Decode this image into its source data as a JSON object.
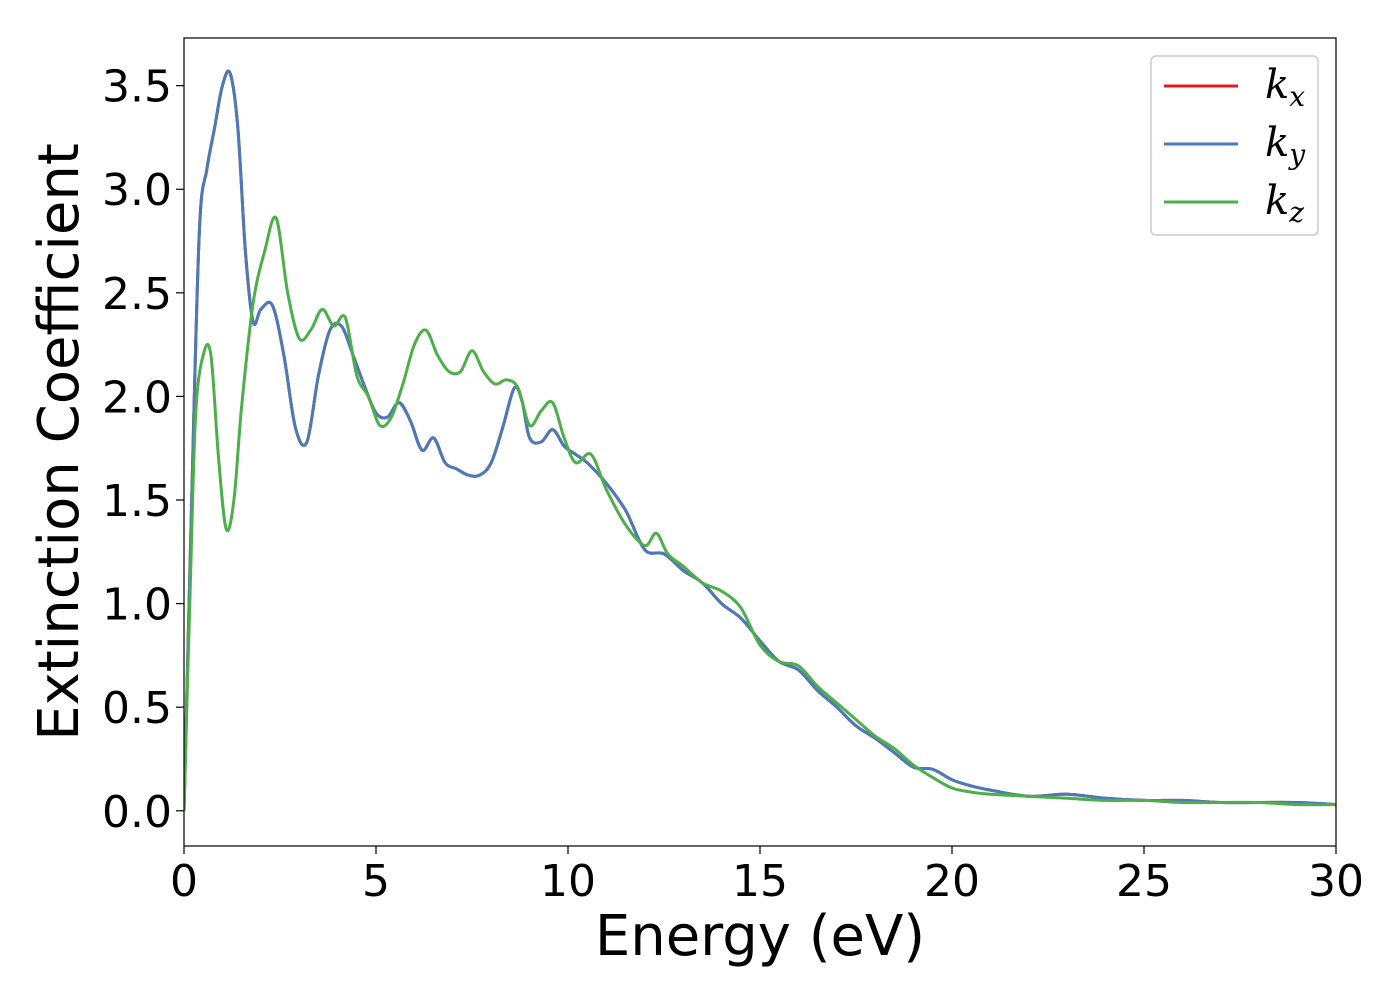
{
  "chart_data": {
    "type": "line",
    "xlabel": "Energy (eV)",
    "ylabel": "Extinction Coefficient",
    "xlim": [
      0,
      30
    ],
    "ylim": [
      -0.17,
      3.73
    ],
    "xticks": [
      0,
      5,
      10,
      15,
      20,
      25,
      30
    ],
    "xtick_labels": [
      "0",
      "5",
      "10",
      "15",
      "20",
      "25",
      "30"
    ],
    "yticks": [
      0.0,
      0.5,
      1.0,
      1.5,
      2.0,
      2.5,
      3.0,
      3.5
    ],
    "ytick_labels": [
      "0.0",
      "0.5",
      "1.0",
      "1.5",
      "2.0",
      "2.5",
      "3.0",
      "3.5"
    ],
    "grid": false,
    "legend_position": "top-right",
    "series": [
      {
        "name": "kx",
        "label_main": "k",
        "label_sub": "x",
        "color": "#e41a1c",
        "x": [
          0,
          0.2,
          0.4,
          0.6,
          0.8,
          1.0,
          1.2,
          1.4,
          1.6,
          1.8,
          2.0,
          2.3,
          2.6,
          2.9,
          3.2,
          3.5,
          3.8,
          4.1,
          4.4,
          4.7,
          5.0,
          5.3,
          5.6,
          5.9,
          6.2,
          6.5,
          6.8,
          7.1,
          7.4,
          7.7,
          8.0,
          8.3,
          8.6,
          8.8,
          9.0,
          9.3,
          9.6,
          9.9,
          10.2,
          10.5,
          11,
          11.5,
          12,
          12.5,
          13,
          13.5,
          14,
          14.5,
          15,
          15.5,
          16,
          16.5,
          17,
          17.5,
          18,
          18.5,
          19,
          19.5,
          20,
          20.5,
          21,
          22,
          23,
          24,
          25,
          26,
          27,
          28,
          29,
          30
        ],
        "y": [
          0.0,
          1.5,
          2.8,
          3.1,
          3.3,
          3.5,
          3.56,
          3.3,
          2.7,
          2.36,
          2.42,
          2.44,
          2.2,
          1.85,
          1.78,
          2.1,
          2.32,
          2.34,
          2.2,
          2.05,
          1.92,
          1.9,
          1.97,
          1.88,
          1.74,
          1.8,
          1.68,
          1.65,
          1.62,
          1.62,
          1.68,
          1.85,
          2.04,
          1.98,
          1.8,
          1.78,
          1.84,
          1.76,
          1.72,
          1.68,
          1.58,
          1.45,
          1.26,
          1.24,
          1.16,
          1.1,
          1.0,
          0.93,
          0.82,
          0.72,
          0.68,
          0.58,
          0.5,
          0.41,
          0.35,
          0.28,
          0.21,
          0.2,
          0.15,
          0.12,
          0.1,
          0.07,
          0.08,
          0.06,
          0.05,
          0.05,
          0.04,
          0.04,
          0.04,
          0.03
        ]
      },
      {
        "name": "ky",
        "label_main": "k",
        "label_sub": "y",
        "color": "#4a7ab8",
        "x": [
          0,
          0.2,
          0.4,
          0.6,
          0.8,
          1.0,
          1.2,
          1.4,
          1.6,
          1.8,
          2.0,
          2.3,
          2.6,
          2.9,
          3.2,
          3.5,
          3.8,
          4.1,
          4.4,
          4.7,
          5.0,
          5.3,
          5.6,
          5.9,
          6.2,
          6.5,
          6.8,
          7.1,
          7.4,
          7.7,
          8.0,
          8.3,
          8.6,
          8.8,
          9.0,
          9.3,
          9.6,
          9.9,
          10.2,
          10.5,
          11,
          11.5,
          12,
          12.5,
          13,
          13.5,
          14,
          14.5,
          15,
          15.5,
          16,
          16.5,
          17,
          17.5,
          18,
          18.5,
          19,
          19.5,
          20,
          20.5,
          21,
          22,
          23,
          24,
          25,
          26,
          27,
          28,
          29,
          30
        ],
        "y": [
          0.0,
          1.5,
          2.8,
          3.1,
          3.3,
          3.5,
          3.56,
          3.3,
          2.7,
          2.36,
          2.42,
          2.44,
          2.2,
          1.85,
          1.78,
          2.1,
          2.32,
          2.34,
          2.2,
          2.05,
          1.92,
          1.9,
          1.97,
          1.88,
          1.74,
          1.8,
          1.68,
          1.65,
          1.62,
          1.62,
          1.68,
          1.85,
          2.04,
          1.98,
          1.8,
          1.78,
          1.84,
          1.76,
          1.72,
          1.68,
          1.58,
          1.45,
          1.26,
          1.24,
          1.16,
          1.1,
          1.0,
          0.93,
          0.82,
          0.72,
          0.68,
          0.58,
          0.5,
          0.41,
          0.35,
          0.28,
          0.21,
          0.2,
          0.15,
          0.12,
          0.1,
          0.07,
          0.08,
          0.06,
          0.05,
          0.05,
          0.04,
          0.04,
          0.04,
          0.03
        ]
      },
      {
        "name": "kz",
        "label_main": "k",
        "label_sub": "z",
        "color": "#4daf4a",
        "x": [
          0,
          0.15,
          0.3,
          0.5,
          0.7,
          0.9,
          1.1,
          1.3,
          1.5,
          1.8,
          2.1,
          2.4,
          2.7,
          3.0,
          3.3,
          3.6,
          3.9,
          4.2,
          4.5,
          4.8,
          5.1,
          5.4,
          5.7,
          6.0,
          6.3,
          6.6,
          6.9,
          7.2,
          7.5,
          7.8,
          8.1,
          8.4,
          8.7,
          9.0,
          9.3,
          9.6,
          9.9,
          10.2,
          10.6,
          11,
          11.5,
          12,
          12.3,
          12.6,
          13,
          13.5,
          14,
          14.5,
          15,
          15.5,
          16,
          16.5,
          17,
          17.5,
          18,
          18.5,
          19,
          19.5,
          20,
          20.5,
          21,
          22,
          23,
          24,
          25,
          26,
          27,
          28,
          29,
          30
        ],
        "y": [
          0.0,
          1.0,
          1.9,
          2.2,
          2.2,
          1.7,
          1.36,
          1.5,
          1.95,
          2.45,
          2.7,
          2.86,
          2.5,
          2.28,
          2.32,
          2.42,
          2.34,
          2.38,
          2.1,
          2.0,
          1.86,
          1.9,
          2.06,
          2.25,
          2.32,
          2.2,
          2.12,
          2.12,
          2.22,
          2.12,
          2.06,
          2.08,
          2.04,
          1.86,
          1.93,
          1.97,
          1.8,
          1.68,
          1.72,
          1.55,
          1.38,
          1.28,
          1.34,
          1.24,
          1.18,
          1.1,
          1.06,
          0.98,
          0.8,
          0.72,
          0.7,
          0.6,
          0.52,
          0.44,
          0.36,
          0.3,
          0.22,
          0.16,
          0.11,
          0.09,
          0.08,
          0.07,
          0.06,
          0.05,
          0.05,
          0.04,
          0.04,
          0.04,
          0.03,
          0.03
        ]
      }
    ]
  }
}
